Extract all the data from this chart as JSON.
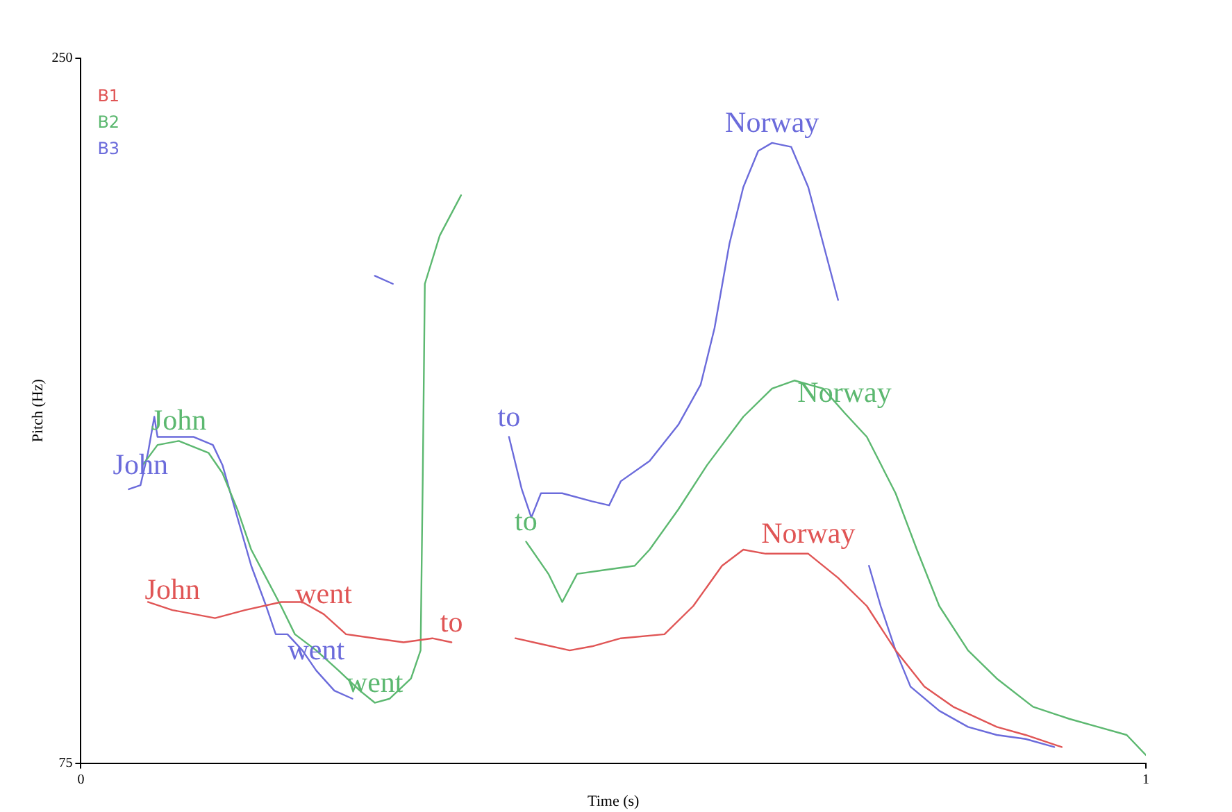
{
  "chart_data": {
    "type": "line",
    "xlabel": "Time (s)",
    "ylabel": "Pitch (Hz)",
    "xlim": [
      0,
      1
    ],
    "xticks": [
      0,
      1
    ],
    "ylim": [
      75,
      250
    ],
    "yticks": [
      75,
      250
    ],
    "grid": false,
    "legend": "top left",
    "series": [
      {
        "name": "B1",
        "color": "#e05555",
        "x": [
          0.063,
          0.086,
          0.126,
          0.154,
          0.188,
          0.208,
          0.228,
          0.249,
          0.276,
          0.303,
          0.33,
          0.348,
          0.378,
          0.408,
          0.425,
          0.459,
          0.48,
          0.507,
          0.548,
          0.575,
          0.602,
          0.622,
          0.643,
          0.683,
          0.711,
          0.738,
          0.765,
          0.792,
          0.819,
          0.86,
          0.887,
          0.921
        ],
        "values": [
          115,
          113,
          111,
          113,
          115,
          115,
          112,
          107,
          106,
          105,
          106,
          105,
          null,
          106,
          105,
          103,
          104,
          106,
          107,
          114,
          124,
          128,
          127,
          127,
          121,
          114,
          103,
          94,
          89,
          84,
          82,
          79
        ]
      },
      {
        "name": "B2",
        "color": "#5cb870",
        "x": [
          0.058,
          0.072,
          0.092,
          0.12,
          0.133,
          0.147,
          0.16,
          0.174,
          0.188,
          0.201,
          0.221,
          0.242,
          0.262,
          0.276,
          0.29,
          0.31,
          0.319,
          0.321,
          0.323,
          0.337,
          0.357,
          0.39,
          0.418,
          0.439,
          0.452,
          0.466,
          0.493,
          0.52,
          0.534,
          0.561,
          0.588,
          0.622,
          0.649,
          0.67,
          0.697,
          0.717,
          0.738,
          0.765,
          0.785,
          0.806,
          0.833,
          0.86,
          0.894,
          0.928,
          0.955,
          0.982,
          1.0
        ],
        "values": [
          149,
          154,
          155,
          152,
          147,
          138,
          128,
          121,
          114,
          107,
          103,
          98,
          93,
          90,
          91,
          96,
          103,
          145,
          194,
          206,
          216,
          null,
          130,
          122,
          115,
          122,
          123,
          124,
          128,
          138,
          149,
          161,
          168,
          170,
          168,
          162,
          156,
          142,
          128,
          114,
          103,
          96,
          89,
          86,
          84,
          82,
          77
        ]
      },
      {
        "name": "B3",
        "color": "#6b6bdb",
        "x": [
          0.045,
          0.056,
          0.063,
          0.069,
          0.072,
          0.086,
          0.106,
          0.124,
          0.133,
          0.147,
          0.16,
          0.174,
          0.183,
          0.194,
          0.208,
          0.221,
          0.238,
          0.255,
          0.265,
          0.276,
          0.293,
          0.35,
          0.402,
          0.414,
          0.423,
          0.432,
          0.452,
          0.48,
          0.496,
          0.507,
          0.534,
          0.561,
          0.582,
          0.595,
          0.609,
          0.622,
          0.636,
          0.649,
          0.667,
          0.683,
          0.697,
          0.711,
          0.725,
          0.74,
          0.751,
          0.765,
          0.779,
          0.806,
          0.833,
          0.86,
          0.887,
          0.914
        ],
        "values": [
          143,
          144,
          152,
          161,
          156,
          156,
          156,
          154,
          149,
          136,
          124,
          114,
          107,
          107,
          103,
          98,
          93,
          91,
          null,
          196,
          194,
          null,
          156,
          143,
          136,
          142,
          142,
          140,
          139,
          145,
          150,
          159,
          169,
          183,
          204,
          218,
          227,
          229,
          228,
          218,
          204,
          190,
          null,
          124,
          114,
          103,
          94,
          88,
          84,
          82,
          81,
          79
        ]
      }
    ],
    "annotations": [
      {
        "text": "John",
        "x": 0.086,
        "y": 113
      },
      {
        "text": "went",
        "x": 0.228,
        "y": 112
      },
      {
        "text": "to",
        "x": 0.348,
        "y": 105
      },
      {
        "text": "Norway",
        "x": 0.683,
        "y": 127
      },
      {
        "text": "John",
        "x": 0.092,
        "y": 155
      },
      {
        "text": "went",
        "x": 0.276,
        "y": 90
      },
      {
        "text": "to",
        "x": 0.418,
        "y": 130
      },
      {
        "text": "Norway",
        "x": 0.717,
        "y": 162
      },
      {
        "text": "John",
        "x": 0.056,
        "y": 144
      },
      {
        "text": "went",
        "x": 0.221,
        "y": 98
      },
      {
        "text": "to",
        "x": 0.402,
        "y": 156
      },
      {
        "text": "Norway",
        "x": 0.649,
        "y": 229
      }
    ]
  }
}
